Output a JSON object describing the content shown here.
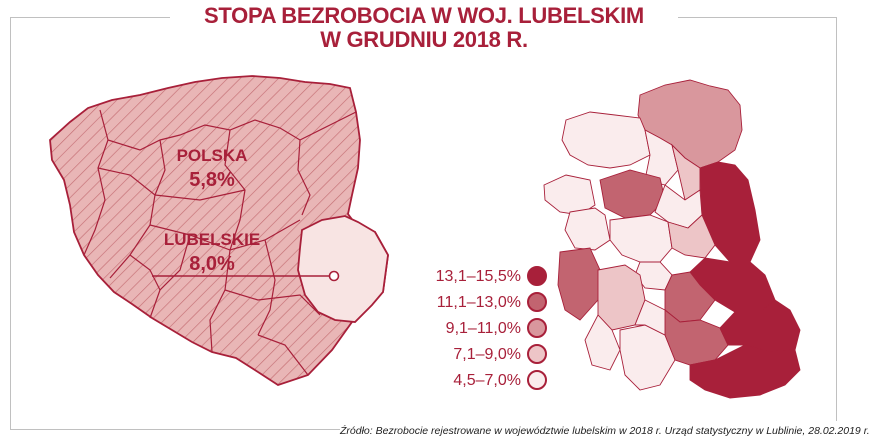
{
  "title_line1": "STOPA BEZROBOCIA W WOJ. LUBELSKIM",
  "title_line2": "W GRUDNIU 2018 R.",
  "poland_map": {
    "label_country": "POLSKA",
    "value_country": "5,8%",
    "label_region": "LUBELSKIE",
    "value_region": "8,0%"
  },
  "legend": [
    {
      "label": "13,1–15,5%",
      "color": "#a8203a"
    },
    {
      "label": "11,1–13,0%",
      "color": "#c26470"
    },
    {
      "label": "9,1–11,0%",
      "color": "#d9979d"
    },
    {
      "label": "7,1–9,0%",
      "color": "#edc5c7"
    },
    {
      "label": "4,5–7,0%",
      "color": "#faeced"
    }
  ],
  "colors": {
    "accent": "#a8203a",
    "poland_fill": "#e9b6b6",
    "lubelskie_fill": "#f8e4e3"
  },
  "source": "Źródło: Bezrobocie rejestrowane w województwie lubelskim w 2018 r. Urząd statystyczny w Lublinie, 28.02.2019 r."
}
